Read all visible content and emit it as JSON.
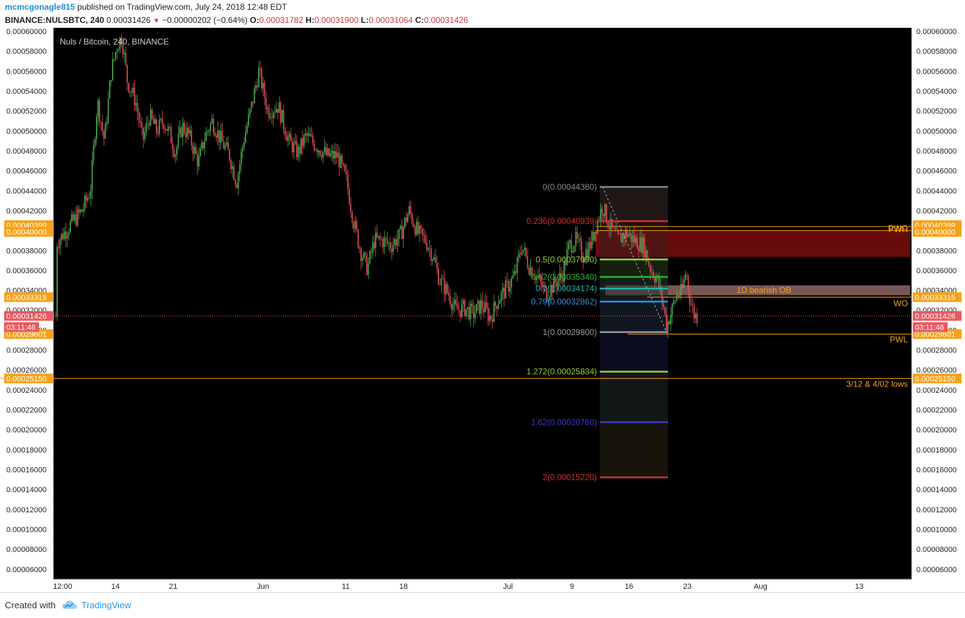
{
  "header": {
    "author": "mcmcgonagle815",
    "published": "published on TradingView.com, July 24, 2018 12:48 EDT",
    "symbol": "BINANCE:NULSBTC, 240",
    "last": "0.00031426",
    "change": "−0.00000202 (−0.64%)",
    "o_label": "O:",
    "o_value": "0.00031782",
    "h_label": "H:",
    "h_value": "0.00031900",
    "l_label": "L:",
    "l_value": "0.00031064",
    "c_label": "C:",
    "c_value": "0.00031426"
  },
  "footer": {
    "created_with": "Created with",
    "brand": "TradingView",
    "icon": "tradingview-cloud-icon"
  },
  "colors": {
    "background": "#000000",
    "up": "#4caf50",
    "down": "#e0505a",
    "price_tag": "#e9585f",
    "orange": "#f7a21b",
    "ob_fill": "#7a0d0d"
  },
  "chart_data": {
    "type": "candlestick",
    "title": "Nuls / Bitcoin, 240, BINANCE",
    "ylim": [
      5e-05,
      0.0006
    ],
    "x_ticks": [
      "12:00",
      "14",
      "21",
      "Jun",
      "11",
      "18",
      "Jul",
      "9",
      "16",
      "23",
      "Aug",
      "13"
    ],
    "y_ticks": [
      "0.00006000",
      "0.00008000",
      "0.00010000",
      "0.00012000",
      "0.00014000",
      "0.00016000",
      "0.00018000",
      "0.00020000",
      "0.00022000",
      "0.00024000",
      "0.00026000",
      "0.00028000",
      "0.00030000",
      "0.00032000",
      "0.00034000",
      "0.00036000",
      "0.00038000",
      "0.00040000",
      "0.00042000",
      "0.00044000",
      "0.00046000",
      "0.00048000",
      "0.00050000",
      "0.00052000",
      "0.00054000",
      "0.00056000",
      "0.00058000",
      "0.00060000"
    ],
    "price_path": [
      [
        "12:00",
        0.00038
      ],
      [
        "14",
        0.00058
      ],
      [
        "21",
        0.00049
      ],
      [
        "Jun",
        0.00054
      ],
      [
        "11",
        0.00046
      ],
      [
        "18",
        0.0004
      ],
      [
        "Jul",
        0.00036
      ],
      [
        "9",
        0.0004
      ],
      [
        "16",
        0.00038
      ],
      [
        "23",
        0.00034
      ]
    ],
    "current_price": {
      "value": 0.00031426,
      "label": "0.00031426",
      "countdown": "03:11:46"
    },
    "fib_levels": [
      {
        "label": "0(0.00044380)",
        "value": 0.0004438,
        "color": "#888888"
      },
      {
        "label": "0.236(0.00040939)",
        "value": 0.00040939,
        "color": "#d0312d"
      },
      {
        "label": "0.5(0.00037090)",
        "value": 0.0003709,
        "color": "#9acd32"
      },
      {
        "label": "0.62(0.00035340)",
        "value": 0.0003534,
        "color": "#2fb42f"
      },
      {
        "label": "0.7(0.00034174)",
        "value": 0.00034174,
        "color": "#20b2aa"
      },
      {
        "label": "0.79(0.00032862)",
        "value": 0.00032862,
        "color": "#2e8fe6"
      },
      {
        "label": "1(0.00029800)",
        "value": 0.000298,
        "color": "#999999"
      },
      {
        "label": "1.272(0.00025834)",
        "value": 0.00025834,
        "color": "#9acd32"
      },
      {
        "label": "1.62(0.00020760)",
        "value": 0.0002076,
        "color": "#3a3ad0"
      },
      {
        "label": "2(0.00015220)",
        "value": 0.0001522,
        "color": "#d0312d"
      }
    ],
    "horizontal_levels": [
      {
        "name": "PWH",
        "value": 0.00040399,
        "tag": "0.00040399"
      },
      {
        "name": "PWO",
        "value": 0.0004,
        "tag": "0.00040000"
      },
      {
        "name": "WO",
        "value": 0.00033315,
        "tag": "0.00033315"
      },
      {
        "name": "PWL",
        "value": 0.00029601,
        "tag": "0.00029601"
      },
      {
        "name": "3/12 & 4/02 lows",
        "value": 0.0002515,
        "tag": "0.00025150"
      }
    ],
    "zones": [
      {
        "label": "",
        "top": 0.0004,
        "bottom": 0.0003735
      },
      {
        "label": "1D bearish OB",
        "top": 0.000345,
        "bottom": 0.000335
      }
    ]
  }
}
